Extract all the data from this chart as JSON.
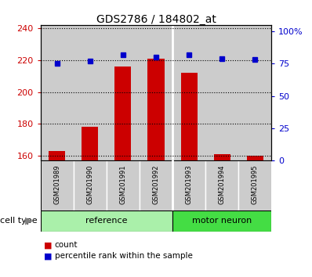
{
  "title": "GDS2786 / 184802_at",
  "samples": [
    "GSM201989",
    "GSM201990",
    "GSM201991",
    "GSM201992",
    "GSM201993",
    "GSM201994",
    "GSM201995"
  ],
  "counts": [
    163,
    178,
    216,
    221,
    212,
    161,
    160
  ],
  "percentiles": [
    75,
    77,
    82,
    80,
    82,
    79,
    78
  ],
  "ylim_left": [
    157,
    242
  ],
  "yticks_left": [
    160,
    180,
    200,
    220,
    240
  ],
  "ylim_right": [
    0,
    105
  ],
  "yticks_right": [
    0,
    25,
    50,
    75,
    100
  ],
  "ytick_labels_right": [
    "0",
    "25",
    "50",
    "75",
    "100%"
  ],
  "bar_color": "#cc0000",
  "dot_color": "#0000cc",
  "ref_color": "#aaf0aa",
  "neuron_color": "#44dd44",
  "bg_color": "#cccccc",
  "bar_bottom": 157,
  "ref_count": 4,
  "neuron_count": 3
}
